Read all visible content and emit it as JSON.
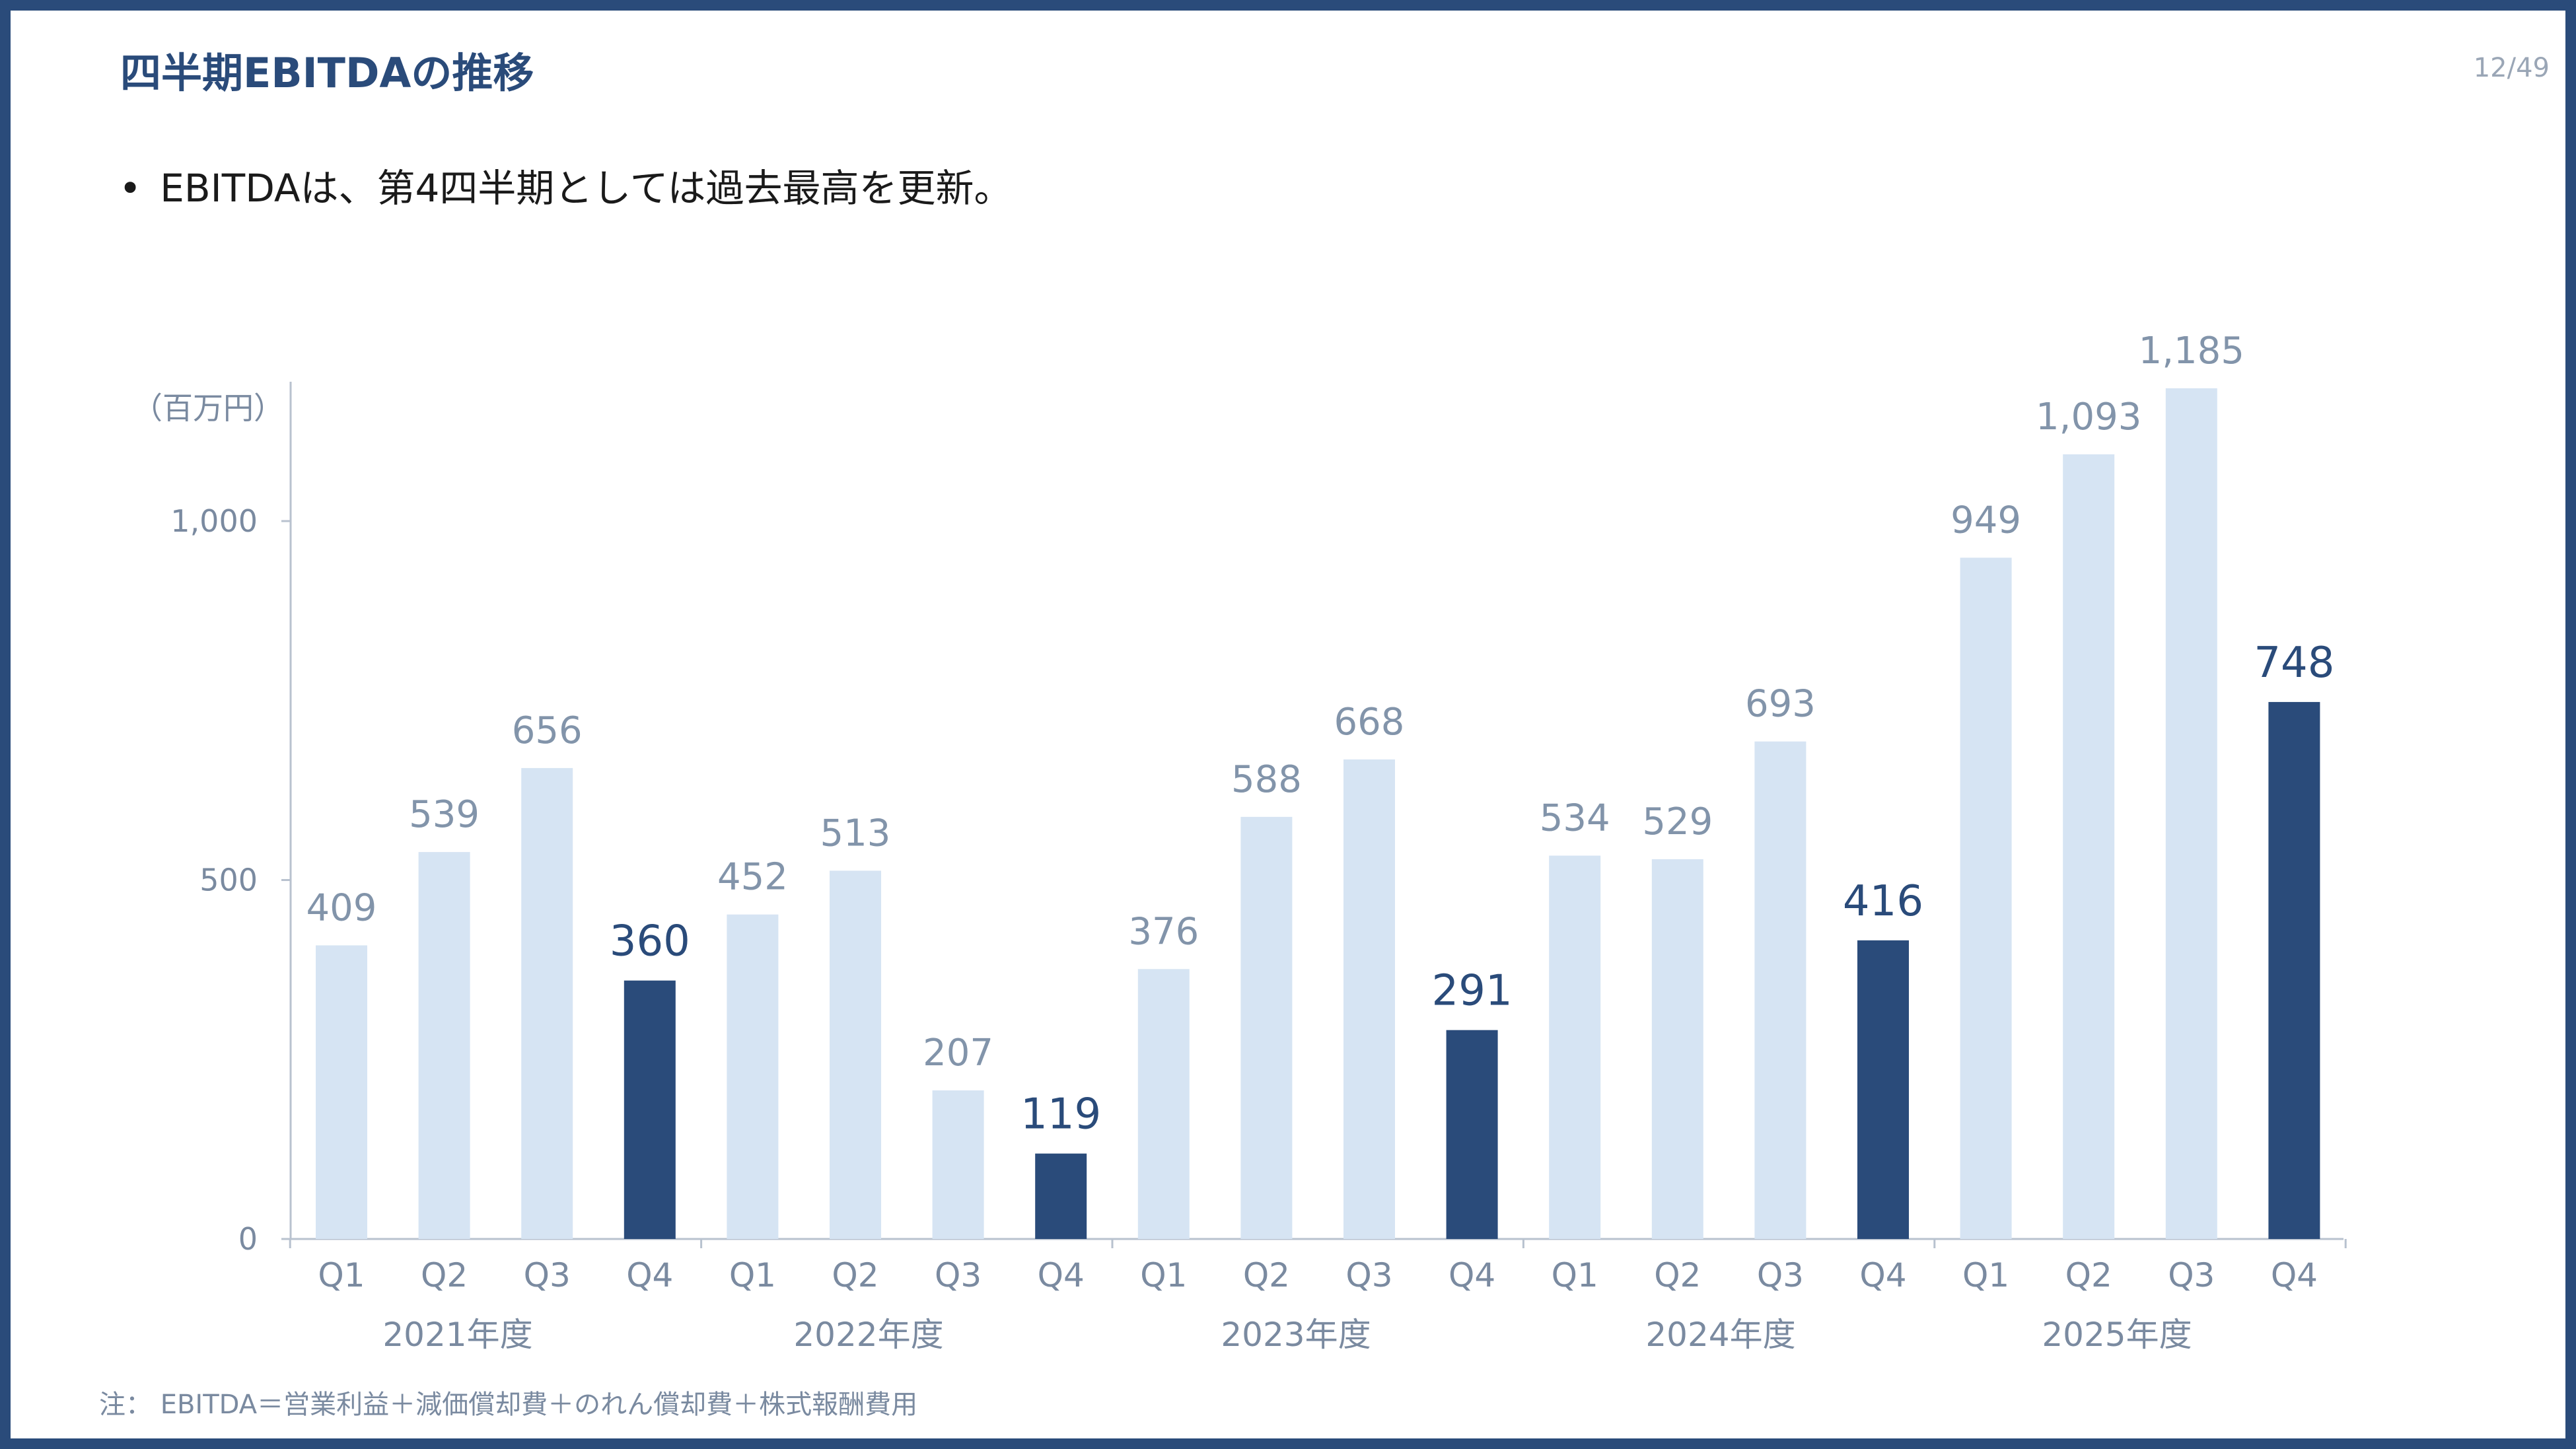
{
  "slide": {
    "title": "四半期EBITDAの推移",
    "page_number": "12/49",
    "bullet_text": "EBITDAは、第4四半期としては過去最高を更新。",
    "note": "注： EBITDA＝営業利益＋減価償却費＋のれん償却費＋株式報酬費用"
  },
  "colors": {
    "frame": "#2a4b7a",
    "highlight_bar": "#2a4b7a",
    "regular_bar": "#d6e4f3",
    "axis": "#b8c2cf",
    "title": "#2a4b7a"
  },
  "chart_data": {
    "type": "bar",
    "unit_label": "（百万円）",
    "ylim": [
      0,
      1200
    ],
    "yticks": [
      0,
      500,
      1000
    ],
    "ytick_labels": [
      "0",
      "500",
      "1,000"
    ],
    "grid": false,
    "groups": [
      "2021年度",
      "2022年度",
      "2023年度",
      "2024年度",
      "2025年度"
    ],
    "quarters": [
      "Q1",
      "Q2",
      "Q3",
      "Q4"
    ],
    "values": [
      409,
      539,
      656,
      360,
      452,
      513,
      207,
      119,
      376,
      588,
      668,
      291,
      534,
      529,
      693,
      416,
      949,
      1093,
      1185,
      748
    ],
    "value_labels": [
      "409",
      "539",
      "656",
      "360",
      "452",
      "513",
      "207",
      "119",
      "376",
      "588",
      "668",
      "291",
      "534",
      "529",
      "693",
      "416",
      "949",
      "1,093",
      "1,185",
      "748"
    ],
    "highlight_quarter": "Q4"
  }
}
